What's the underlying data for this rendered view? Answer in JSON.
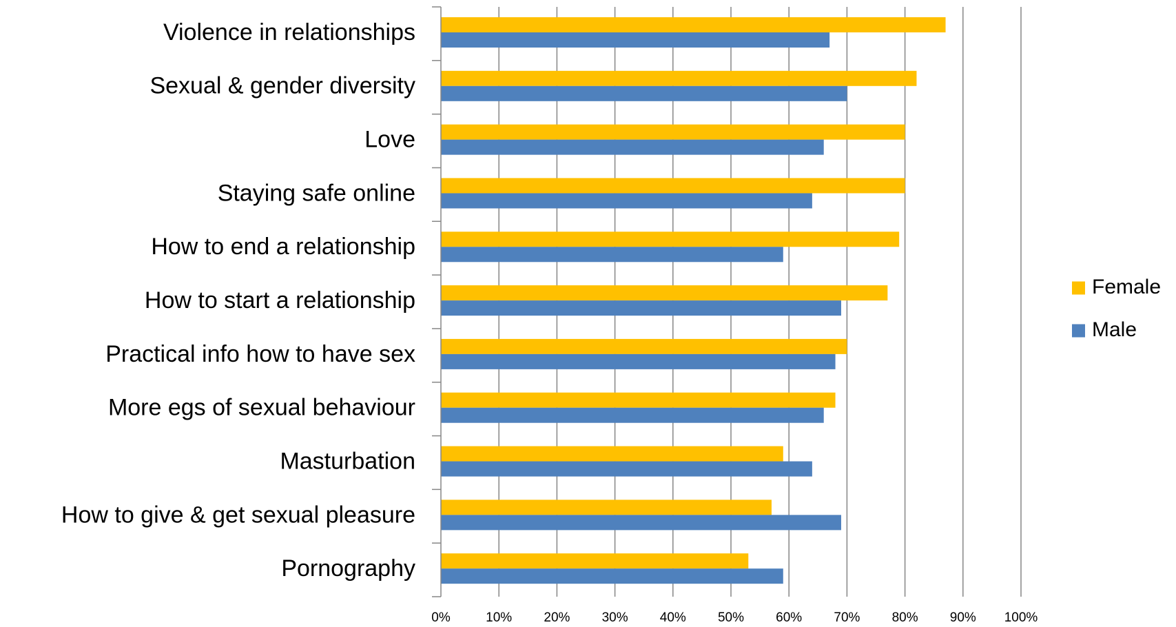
{
  "chart_data": {
    "type": "bar",
    "orientation": "horizontal",
    "categories": [
      "Violence in relationships",
      "Sexual & gender diversity",
      "Love",
      "Staying safe online",
      "How to end a relationship",
      "How to start a relationship",
      "Practical info how to have sex",
      "More egs of sexual behaviour",
      "Masturbation",
      "How to give & get sexual pleasure",
      "Pornography"
    ],
    "series": [
      {
        "name": "Female",
        "color": "#FFC000",
        "values": [
          87,
          82,
          80,
          80,
          79,
          77,
          70,
          68,
          59,
          57,
          53
        ]
      },
      {
        "name": "Male",
        "color": "#4F81BD",
        "values": [
          67,
          70,
          66,
          64,
          59,
          69,
          68,
          66,
          64,
          69,
          59
        ]
      }
    ],
    "x_ticks": [
      "0%",
      "10%",
      "20%",
      "30%",
      "40%",
      "50%",
      "60%",
      "70%",
      "80%",
      "90%",
      "100%"
    ],
    "xlim": [
      0,
      100
    ],
    "grid": true,
    "legend_position": "right",
    "gridline_color": "#868686",
    "axis_color": "#868686"
  }
}
